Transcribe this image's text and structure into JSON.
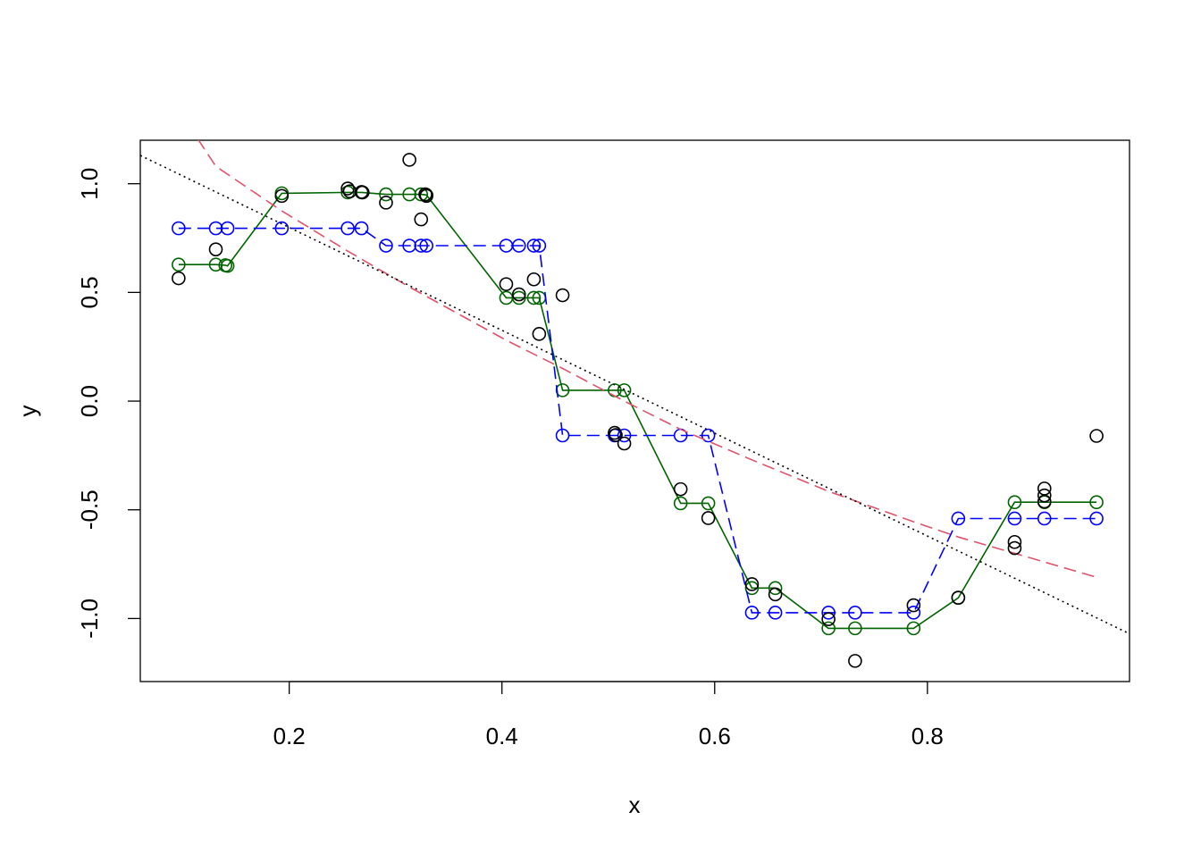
{
  "chart_data": {
    "type": "scatter",
    "title": "",
    "xlabel": "x",
    "ylabel": "y",
    "xlim": [
      0.06,
      0.99
    ],
    "ylim": [
      -1.29,
      1.2
    ],
    "grid": false,
    "legend": "none",
    "x_ticks": [
      0.2,
      0.4,
      0.6,
      0.8
    ],
    "x_tick_labels": [
      "0.2",
      "0.4",
      "0.6",
      "0.8"
    ],
    "y_ticks": [
      -1.0,
      -0.5,
      0.0,
      0.5,
      1.0
    ],
    "y_tick_labels": [
      "-1.0",
      "-0.5",
      "0.0",
      "0.5",
      "1.0"
    ],
    "observations": {
      "color": "#000000",
      "points": [
        [
          0.096,
          0.565
        ],
        [
          0.131,
          0.698
        ],
        [
          0.193,
          0.944
        ],
        [
          0.255,
          0.978
        ],
        [
          0.257,
          0.965
        ],
        [
          0.268,
          0.962
        ],
        [
          0.269,
          0.96
        ],
        [
          0.291,
          0.913
        ],
        [
          0.313,
          1.11
        ],
        [
          0.324,
          0.836
        ],
        [
          0.328,
          0.951
        ],
        [
          0.329,
          0.944
        ],
        [
          0.404,
          0.538
        ],
        [
          0.416,
          0.491
        ],
        [
          0.43,
          0.56
        ],
        [
          0.435,
          0.309
        ],
        [
          0.457,
          0.487
        ],
        [
          0.506,
          -0.146
        ],
        [
          0.507,
          -0.156
        ],
        [
          0.515,
          -0.195
        ],
        [
          0.568,
          -0.405
        ],
        [
          0.594,
          -0.538
        ],
        [
          0.635,
          -0.842
        ],
        [
          0.657,
          -0.889
        ],
        [
          0.707,
          -1.003
        ],
        [
          0.732,
          -1.195
        ],
        [
          0.787,
          -0.939
        ],
        [
          0.829,
          -0.904
        ],
        [
          0.882,
          -0.648
        ],
        [
          0.882,
          -0.676
        ],
        [
          0.91,
          -0.402
        ],
        [
          0.91,
          -0.434
        ],
        [
          0.91,
          -0.462
        ],
        [
          0.959,
          -0.16
        ]
      ]
    },
    "series": [
      {
        "color": "#006400",
        "line_style": "solid",
        "points": [
          [
            0.096,
            0.628
          ],
          [
            0.131,
            0.628
          ],
          [
            0.14,
            0.625
          ],
          [
            0.142,
            0.622
          ],
          [
            0.193,
            0.956
          ],
          [
            0.255,
            0.96
          ],
          [
            0.268,
            0.96
          ],
          [
            0.291,
            0.951
          ],
          [
            0.313,
            0.951
          ],
          [
            0.324,
            0.951
          ],
          [
            0.329,
            0.948
          ],
          [
            0.404,
            0.475
          ],
          [
            0.416,
            0.475
          ],
          [
            0.43,
            0.475
          ],
          [
            0.435,
            0.475
          ],
          [
            0.457,
            0.05
          ],
          [
            0.506,
            0.05
          ],
          [
            0.515,
            0.05
          ],
          [
            0.568,
            -0.47
          ],
          [
            0.594,
            -0.47
          ],
          [
            0.635,
            -0.86
          ],
          [
            0.657,
            -0.86
          ],
          [
            0.707,
            -1.045
          ],
          [
            0.732,
            -1.045
          ],
          [
            0.787,
            -1.045
          ],
          [
            0.829,
            -0.905
          ],
          [
            0.882,
            -0.465
          ],
          [
            0.91,
            -0.465
          ],
          [
            0.959,
            -0.465
          ]
        ]
      },
      {
        "color": "#0000ff",
        "line_style": "dashed",
        "points": [
          [
            0.096,
            0.795
          ],
          [
            0.131,
            0.795
          ],
          [
            0.142,
            0.795
          ],
          [
            0.193,
            0.795
          ],
          [
            0.255,
            0.795
          ],
          [
            0.268,
            0.795
          ],
          [
            0.291,
            0.715
          ],
          [
            0.313,
            0.715
          ],
          [
            0.324,
            0.715
          ],
          [
            0.329,
            0.715
          ],
          [
            0.404,
            0.715
          ],
          [
            0.416,
            0.715
          ],
          [
            0.43,
            0.715
          ],
          [
            0.435,
            0.715
          ],
          [
            0.457,
            -0.158
          ],
          [
            0.506,
            -0.158
          ],
          [
            0.515,
            -0.158
          ],
          [
            0.568,
            -0.158
          ],
          [
            0.594,
            -0.158
          ],
          [
            0.635,
            -0.973
          ],
          [
            0.657,
            -0.973
          ],
          [
            0.707,
            -0.973
          ],
          [
            0.732,
            -0.973
          ],
          [
            0.787,
            -0.973
          ],
          [
            0.829,
            -0.54
          ],
          [
            0.882,
            -0.54
          ],
          [
            0.91,
            -0.54
          ],
          [
            0.959,
            -0.54
          ]
        ]
      },
      {
        "color": "#df536b",
        "line_style": "dashed",
        "points": [
          [
            0.06,
            1.4
          ],
          [
            0.096,
            1.34
          ],
          [
            0.131,
            1.08
          ],
          [
            0.193,
            0.875
          ],
          [
            0.255,
            0.69
          ],
          [
            0.313,
            0.525
          ],
          [
            0.404,
            0.28
          ],
          [
            0.457,
            0.15
          ],
          [
            0.515,
            0.0
          ],
          [
            0.568,
            -0.13
          ],
          [
            0.635,
            -0.27
          ],
          [
            0.707,
            -0.415
          ],
          [
            0.787,
            -0.555
          ],
          [
            0.829,
            -0.625
          ],
          [
            0.882,
            -0.7
          ],
          [
            0.959,
            -0.81
          ]
        ]
      },
      {
        "color": "#000000",
        "line_style": "dotted",
        "points": [
          [
            0.06,
            1.13
          ],
          [
            0.99,
            -1.07
          ]
        ]
      }
    ]
  }
}
